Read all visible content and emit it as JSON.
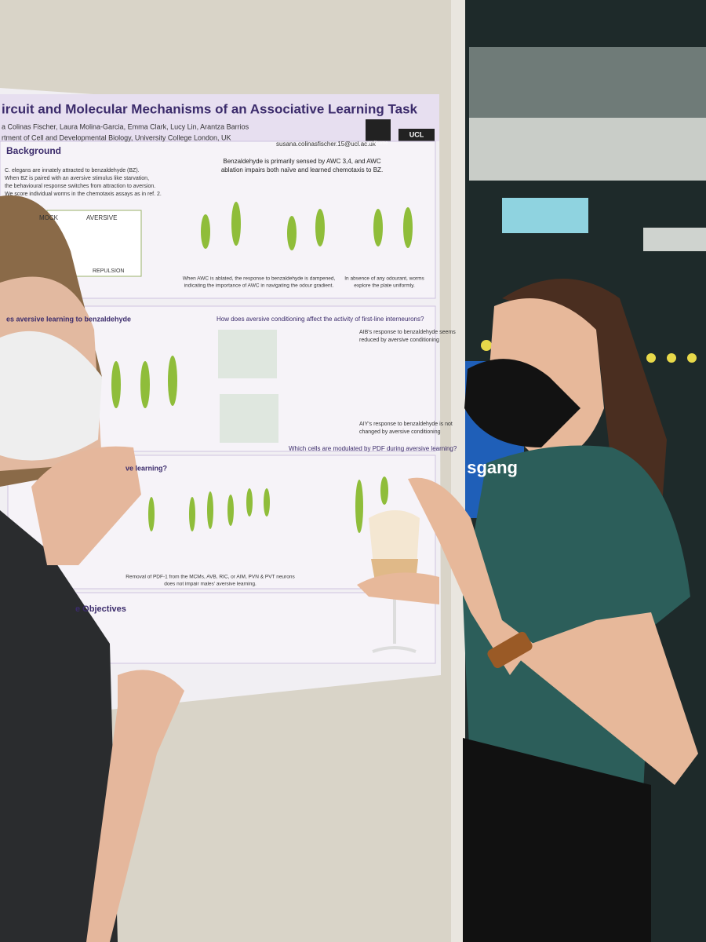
{
  "poster": {
    "title": "ircuit and Molecular Mechanisms of an Associative Learning Task",
    "authors": "a Colinas Fischer,  Laura Molina-Garcia,  Emma Clark,  Lucy Lin,  Arantza Barrios",
    "affiliation": "rtment of Cell and Developmental Biology, University College London, UK",
    "email": "susana.colinasfischer.15@ucl.ac.uk",
    "logos": [
      "wellcome",
      "UCL"
    ],
    "background": {
      "heading": "Background",
      "intro": [
        "C. elegans are innately attracted to benzaldehyde (BZ).",
        "When BZ is paired with an aversive stimulus like starvation,",
        "the behavioural response switches from attraction to aversion.",
        "We score individual worms in the chemotaxis assays as in ref. 2."
      ],
      "conditions": [
        "MOCK",
        "AVERSIVE",
        "REPULSION"
      ],
      "finding": [
        "Benzaldehyde is primarily sensed by AWC 3,4, and AWC",
        "ablation impairs both naïve and learned chemotaxis to BZ."
      ],
      "note_left": [
        "When AWC is ablated, the response to benzaldehyde is dampened,",
        "indicating the importance of AWC in navigating the odour gradient."
      ],
      "note_right": [
        "In absence of any odourant, worms",
        "explore the plate uniformly."
      ]
    },
    "middle": {
      "left_heading": "es aversive learning to benzaldehyde",
      "right_heading": "How does aversive conditioning affect the activity of first-line interneurons?",
      "aib": [
        "AIB's response to benzaldehyde seems",
        "reduced by aversive conditioning"
      ],
      "aiy": [
        "AIY's response to benzaldehyde is not",
        "changed by aversive conditioning"
      ]
    },
    "lower": {
      "left_heading": "ve learning?",
      "right_heading": "Which cells are modulated by PDF during aversive learning?",
      "conclusion": [
        "Removal of PDF-1 from the MCMs, AVB, RIC, or AIM, PVN & PVT neurons",
        "does not impair males' aversive learning."
      ]
    },
    "objectives": {
      "heading": "e Objectives"
    }
  },
  "sign": "sgang"
}
